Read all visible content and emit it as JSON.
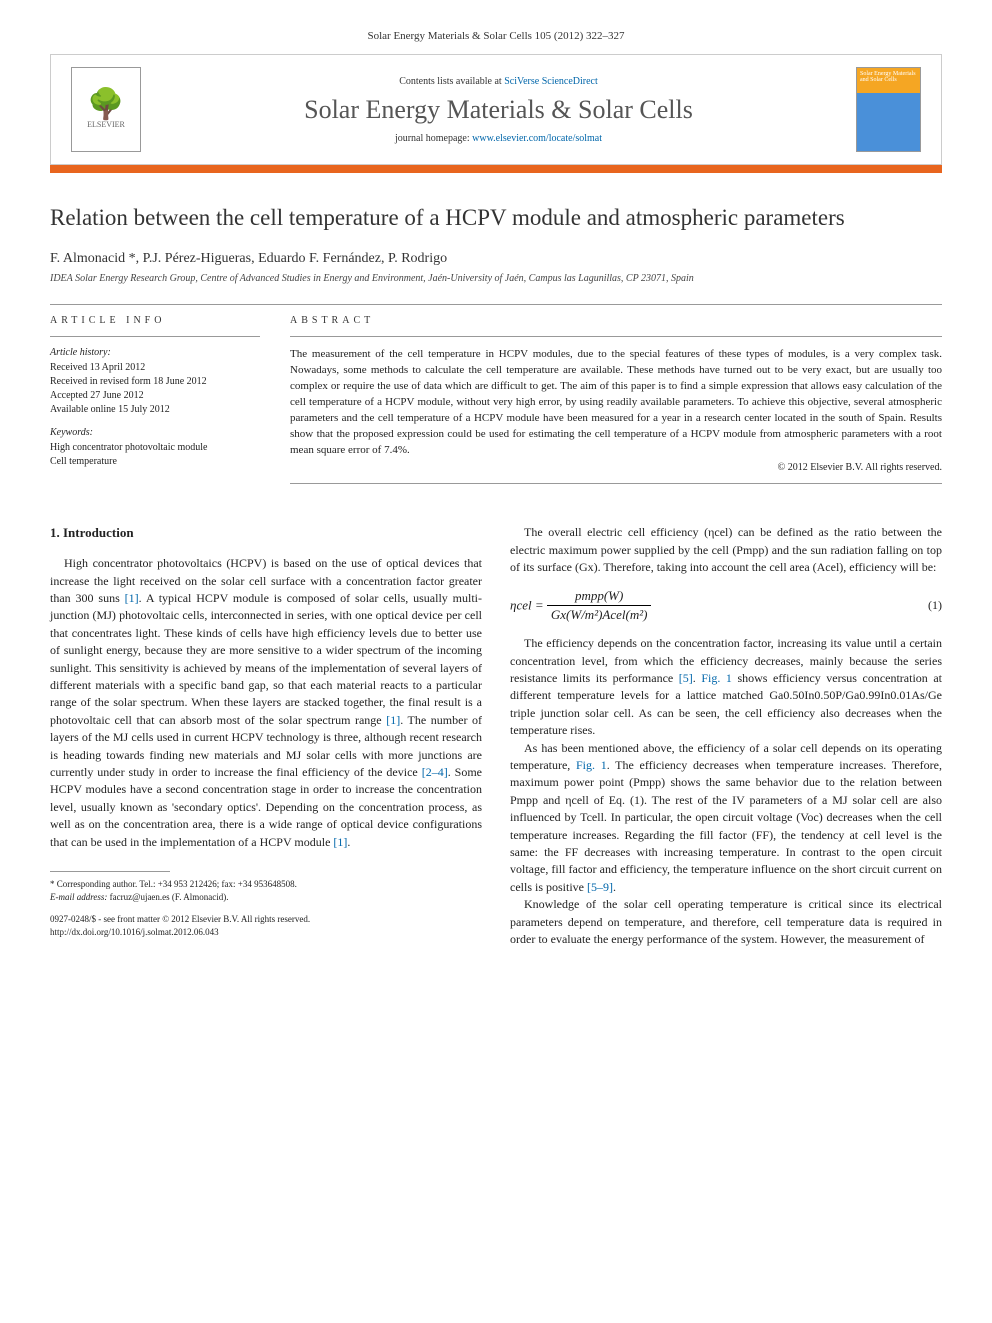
{
  "header": {
    "journal_ref": "Solar Energy Materials & Solar Cells 105 (2012) 322–327",
    "contents_prefix": "Contents lists available at ",
    "contents_link": "SciVerse ScienceDirect",
    "journal_title": "Solar Energy Materials & Solar Cells",
    "homepage_prefix": "journal homepage: ",
    "homepage_link": "www.elsevier.com/locate/solmat",
    "elsevier_label": "ELSEVIER",
    "cover_label": "Solar Energy Materials and Solar Cells"
  },
  "article": {
    "title": "Relation between the cell temperature of a HCPV module and atmospheric parameters",
    "authors": "F. Almonacid *, P.J. Pérez-Higueras, Eduardo F. Fernández, P. Rodrigo",
    "affiliation": "IDEA Solar Energy Research Group, Centre of Advanced Studies in Energy and Environment, Jaén-University of Jaén, Campus las Lagunillas, CP 23071, Spain"
  },
  "info": {
    "heading": "ARTICLE INFO",
    "history_label": "Article history:",
    "received": "Received 13 April 2012",
    "revised": "Received in revised form 18 June 2012",
    "accepted": "Accepted 27 June 2012",
    "online": "Available online 15 July 2012",
    "keywords_label": "Keywords:",
    "kw1": "High concentrator photovoltaic module",
    "kw2": "Cell temperature"
  },
  "abstract": {
    "heading": "ABSTRACT",
    "text": "The measurement of the cell temperature in HCPV modules, due to the special features of these types of modules, is a very complex task. Nowadays, some methods to calculate the cell temperature are available. These methods have turned out to be very exact, but are usually too complex or require the use of data which are difficult to get. The aim of this paper is to find a simple expression that allows easy calculation of the cell temperature of a HCPV module, without very high error, by using readily available parameters. To achieve this objective, several atmospheric parameters and the cell temperature of a HCPV module have been measured for a year in a research center located in the south of Spain. Results show that the proposed expression could be used for estimating the cell temperature of a HCPV module from atmospheric parameters with a root mean square error of 7.4%.",
    "copyright": "© 2012 Elsevier B.V. All rights reserved."
  },
  "body": {
    "intro_heading": "1. Introduction",
    "left_p1a": "High concentrator photovoltaics (HCPV) is based on the use of optical devices that increase the light received on the solar cell surface with a concentration factor greater than 300 suns ",
    "ref1": "[1]",
    "left_p1b": ". A typical HCPV module is composed of solar cells, usually multi-junction (MJ) photovoltaic cells, interconnected in series, with one optical device per cell that concentrates light. These kinds of cells have high efficiency levels due to better use of sunlight energy, because they are more sensitive to a wider spectrum of the incoming sunlight. This sensitivity is achieved by means of the implementation of several layers of different materials with a specific band gap, so that each material reacts to a particular range of the solar spectrum. When these layers are stacked together, the final result is a photovoltaic cell that can absorb most of the solar spectrum range ",
    "left_p1c": ". The number of layers of the MJ cells used in current HCPV technology is three, although recent research is heading towards finding new materials and MJ solar cells with more junctions are currently under study in order to increase the final efficiency of the device ",
    "ref2_4": "[2–4]",
    "left_p1d": ". Some HCPV modules have a second concentration stage in order to increase the concentration level, usually known as 'secondary optics'. Depending on the concentration process, as well as on the concentration area, there is a wide range of optical device configurations that can be used in the implementation of a HCPV module ",
    "left_p1e": ".",
    "right_p1": "The overall electric cell efficiency (ηcel) can be defined as the ratio between the electric maximum power supplied by the cell (Pmpp) and the sun radiation falling on top of its surface (Gx). Therefore, taking into account the cell area (Acel), efficiency will be:",
    "eq1_lhs": "ηcel =",
    "eq1_num": "pmpp(W)",
    "eq1_den": "Gx(W/m²)Acel(m²)",
    "eq1_num_label": "(1)",
    "right_p2a": "The efficiency depends on the concentration factor, increasing its value until a certain concentration level, from which the efficiency decreases, mainly because the series resistance limits its performance ",
    "ref5": "[5]",
    "right_p2b": ". ",
    "fig1": "Fig. 1",
    "right_p2c": " shows efficiency versus concentration at different temperature levels for a lattice matched Ga0.50In0.50P/Ga0.99In0.01As/Ge triple junction solar cell. As can be seen, the cell efficiency also decreases when the temperature rises.",
    "right_p3a": "As has been mentioned above, the efficiency of a solar cell depends on its operating temperature, ",
    "right_p3b": ". The efficiency decreases when temperature increases. Therefore, maximum power point (Pmpp) shows the same behavior due to the relation between Pmpp and ηcell of Eq. (1). The rest of the IV parameters of a MJ solar cell are also influenced by Tcell. In particular, the open circuit voltage (Voc) decreases when the cell temperature increases. Regarding the fill factor (FF), the tendency at cell level is the same: the FF decreases with increasing temperature. In contrast to the open circuit voltage, fill factor and efficiency, the temperature influence on the short circuit current on cells is positive ",
    "ref5_9": "[5–9]",
    "right_p3c": ".",
    "right_p4": "Knowledge of the solar cell operating temperature is critical since its electrical parameters depend on temperature, and therefore, cell temperature data is required in order to evaluate the energy performance of the system. However, the measurement of"
  },
  "footnote": {
    "corr": "* Corresponding author. Tel.: +34 953 212426; fax: +34 953648508.",
    "email_label": "E-mail address: ",
    "email": "facruz@ujaen.es (F. Almonacid).",
    "issn": "0927-0248/$ - see front matter © 2012 Elsevier B.V. All rights reserved.",
    "doi": "http://dx.doi.org/10.1016/j.solmat.2012.06.043"
  }
}
